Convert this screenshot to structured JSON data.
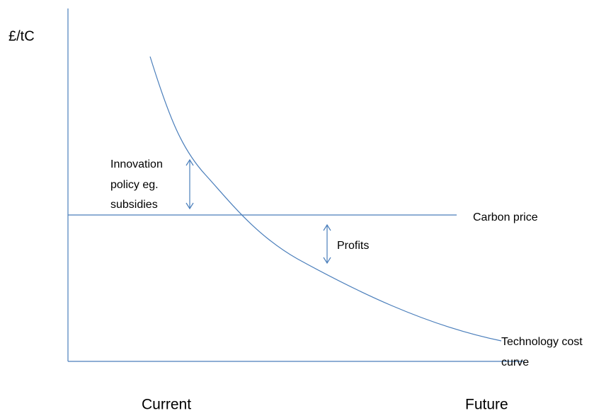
{
  "axes": {
    "y_label": "£/tC",
    "x_labels": [
      "Current",
      "Future"
    ]
  },
  "carbon_price": {
    "label": "Carbon price"
  },
  "cost_curve": {
    "label_lines": [
      "Technology cost",
      "curve"
    ]
  },
  "innovation": {
    "label_lines": [
      "Innovation",
      "policy eg.",
      "subsidies"
    ]
  },
  "profits": {
    "label": "Profits"
  }
}
